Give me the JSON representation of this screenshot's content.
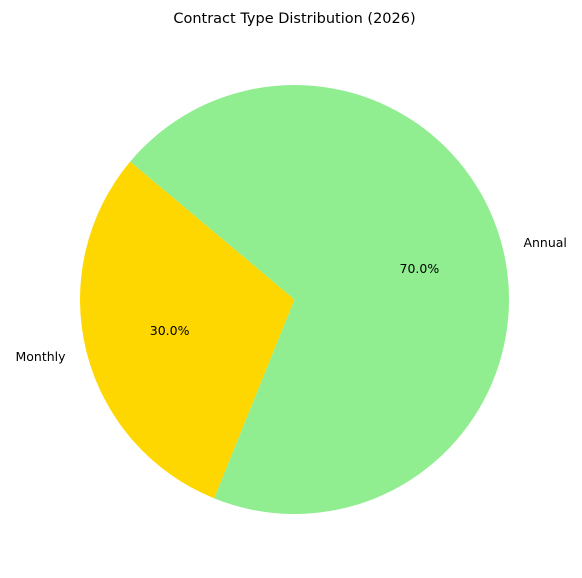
{
  "chart_data": {
    "type": "pie",
    "title": "Contract Type Distribution (2026)",
    "start_angle_deg": 140,
    "direction": "counterclockwise",
    "slices": [
      {
        "label": "Monthly",
        "value": 30.0,
        "pct_text": "30.0%",
        "color": "#FFD700"
      },
      {
        "label": "Annual",
        "value": 70.0,
        "pct_text": "70.0%",
        "color": "#90EE90"
      }
    ]
  }
}
